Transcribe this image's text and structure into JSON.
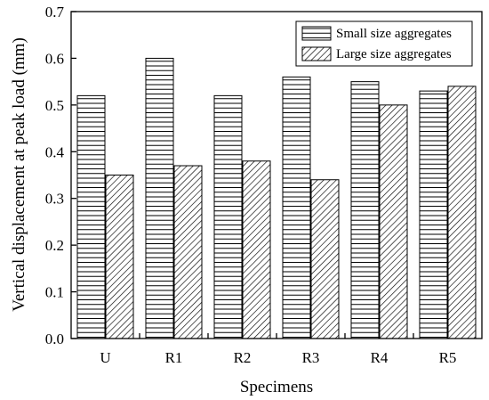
{
  "chart_data": {
    "type": "bar",
    "title": "",
    "xlabel": "Specimens",
    "ylabel": "Vertical displacement at peak load (mm)",
    "categories": [
      "U",
      "R1",
      "R2",
      "R3",
      "R4",
      "R5"
    ],
    "ylim": [
      0,
      0.7
    ],
    "yticks": [
      0.0,
      0.1,
      0.2,
      0.3,
      0.4,
      0.5,
      0.6,
      0.7
    ],
    "ytick_labels": [
      "0.0",
      "0.1",
      "0.2",
      "0.3",
      "0.4",
      "0.5",
      "0.6",
      "0.7"
    ],
    "grid": false,
    "legend_position": "top-right",
    "series": [
      {
        "name": "Small size aggregates",
        "pattern": "horizontal-lines",
        "values": [
          0.52,
          0.6,
          0.52,
          0.56,
          0.55,
          0.53
        ]
      },
      {
        "name": "Large size aggregates",
        "pattern": "diagonal-hatch",
        "values": [
          0.35,
          0.37,
          0.38,
          0.34,
          0.5,
          0.54
        ]
      }
    ],
    "colors": {
      "stroke": "#000000",
      "fill": "#ffffff"
    }
  }
}
